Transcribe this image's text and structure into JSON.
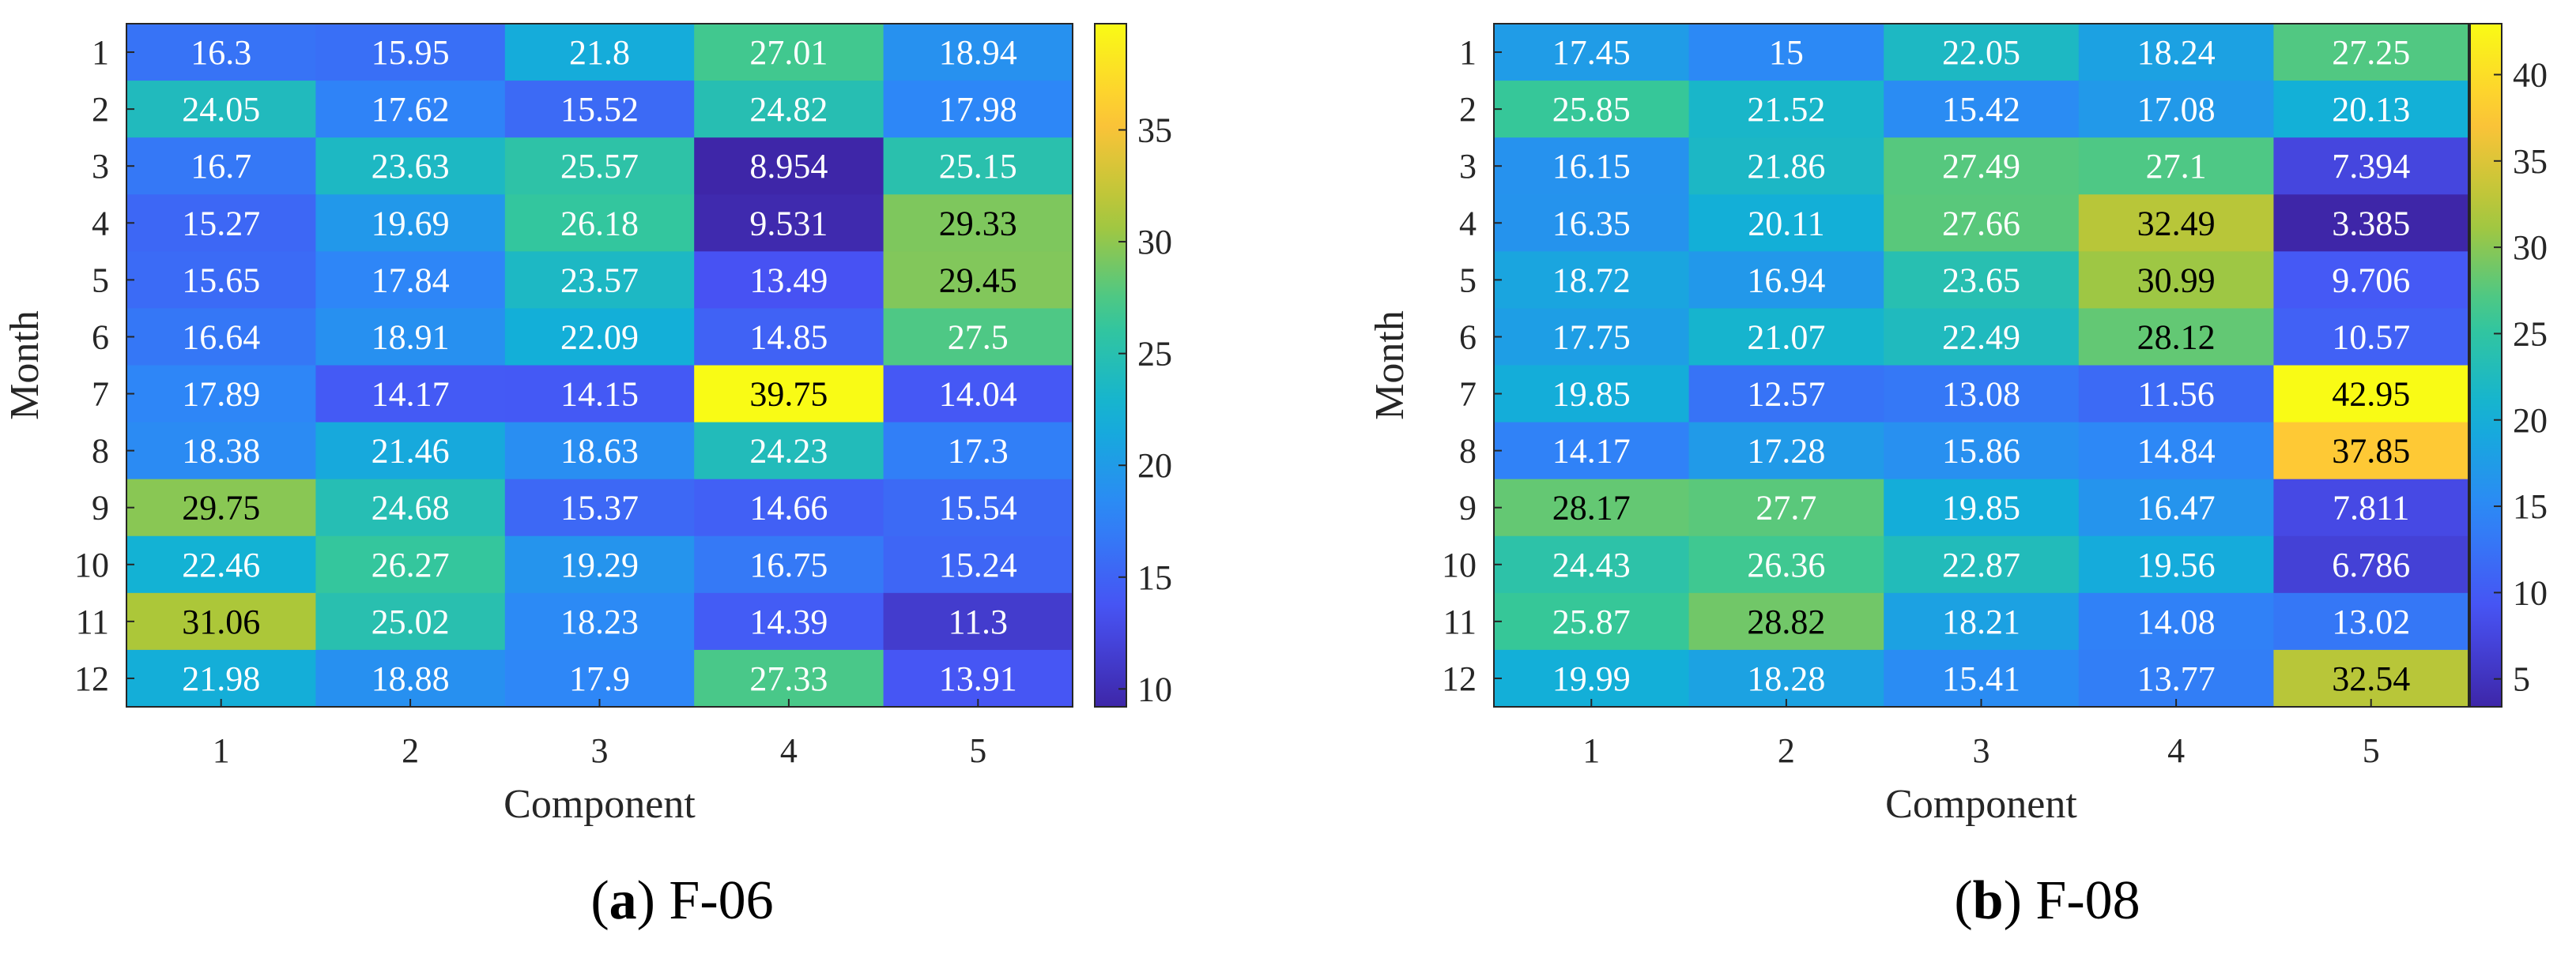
{
  "chart_data": [
    {
      "type": "heatmap",
      "caption_letter": "a",
      "caption_text": "F-06",
      "xlabel": "Component",
      "ylabel": "Month",
      "x_categories": [
        "1",
        "2",
        "3",
        "4",
        "5"
      ],
      "y_categories": [
        "1",
        "2",
        "3",
        "4",
        "5",
        "6",
        "7",
        "8",
        "9",
        "10",
        "11",
        "12"
      ],
      "values": [
        [
          "16.3",
          "15.95",
          "21.8",
          "27.01",
          "18.94"
        ],
        [
          "24.05",
          "17.62",
          "15.52",
          "24.82",
          "17.98"
        ],
        [
          "16.7",
          "23.63",
          "25.57",
          "8.954",
          "25.15"
        ],
        [
          "15.27",
          "19.69",
          "26.18",
          "9.531",
          "29.33"
        ],
        [
          "15.65",
          "17.84",
          "23.57",
          "13.49",
          "29.45"
        ],
        [
          "16.64",
          "18.91",
          "22.09",
          "14.85",
          "27.5"
        ],
        [
          "17.89",
          "14.17",
          "14.15",
          "39.75",
          "14.04"
        ],
        [
          "18.38",
          "21.46",
          "18.63",
          "24.23",
          "17.3"
        ],
        [
          "29.75",
          "24.68",
          "15.37",
          "14.66",
          "15.54"
        ],
        [
          "22.46",
          "26.27",
          "19.29",
          "16.75",
          "15.24"
        ],
        [
          "31.06",
          "25.02",
          "18.23",
          "14.39",
          "11.3"
        ],
        [
          "21.98",
          "18.88",
          "17.9",
          "27.33",
          "13.91"
        ]
      ],
      "colorbar_ticks": [
        "10",
        "15",
        "20",
        "25",
        "30",
        "35"
      ],
      "colormap": "parula"
    },
    {
      "type": "heatmap",
      "caption_letter": "b",
      "caption_text": "F-08",
      "xlabel": "Component",
      "ylabel": "Month",
      "x_categories": [
        "1",
        "2",
        "3",
        "4",
        "5"
      ],
      "y_categories": [
        "1",
        "2",
        "3",
        "4",
        "5",
        "6",
        "7",
        "8",
        "9",
        "10",
        "11",
        "12"
      ],
      "values": [
        [
          "17.45",
          "15",
          "22.05",
          "18.24",
          "27.25"
        ],
        [
          "25.85",
          "21.52",
          "15.42",
          "17.08",
          "20.13"
        ],
        [
          "16.15",
          "21.86",
          "27.49",
          "27.1",
          "7.394"
        ],
        [
          "16.35",
          "20.11",
          "27.66",
          "32.49",
          "3.385"
        ],
        [
          "18.72",
          "16.94",
          "23.65",
          "30.99",
          "9.706"
        ],
        [
          "17.75",
          "21.07",
          "22.49",
          "28.12",
          "10.57"
        ],
        [
          "19.85",
          "12.57",
          "13.08",
          "11.56",
          "42.95"
        ],
        [
          "14.17",
          "17.28",
          "15.86",
          "14.84",
          "37.85"
        ],
        [
          "28.17",
          "27.7",
          "19.85",
          "16.47",
          "7.811"
        ],
        [
          "24.43",
          "26.36",
          "22.87",
          "19.56",
          "6.786"
        ],
        [
          "25.87",
          "28.82",
          "18.21",
          "14.08",
          "13.02"
        ],
        [
          "19.99",
          "18.28",
          "15.41",
          "13.77",
          "32.54"
        ]
      ],
      "colorbar_ticks": [
        "5",
        "10",
        "15",
        "20",
        "25",
        "30",
        "35",
        "40"
      ],
      "colormap": "parula"
    }
  ]
}
